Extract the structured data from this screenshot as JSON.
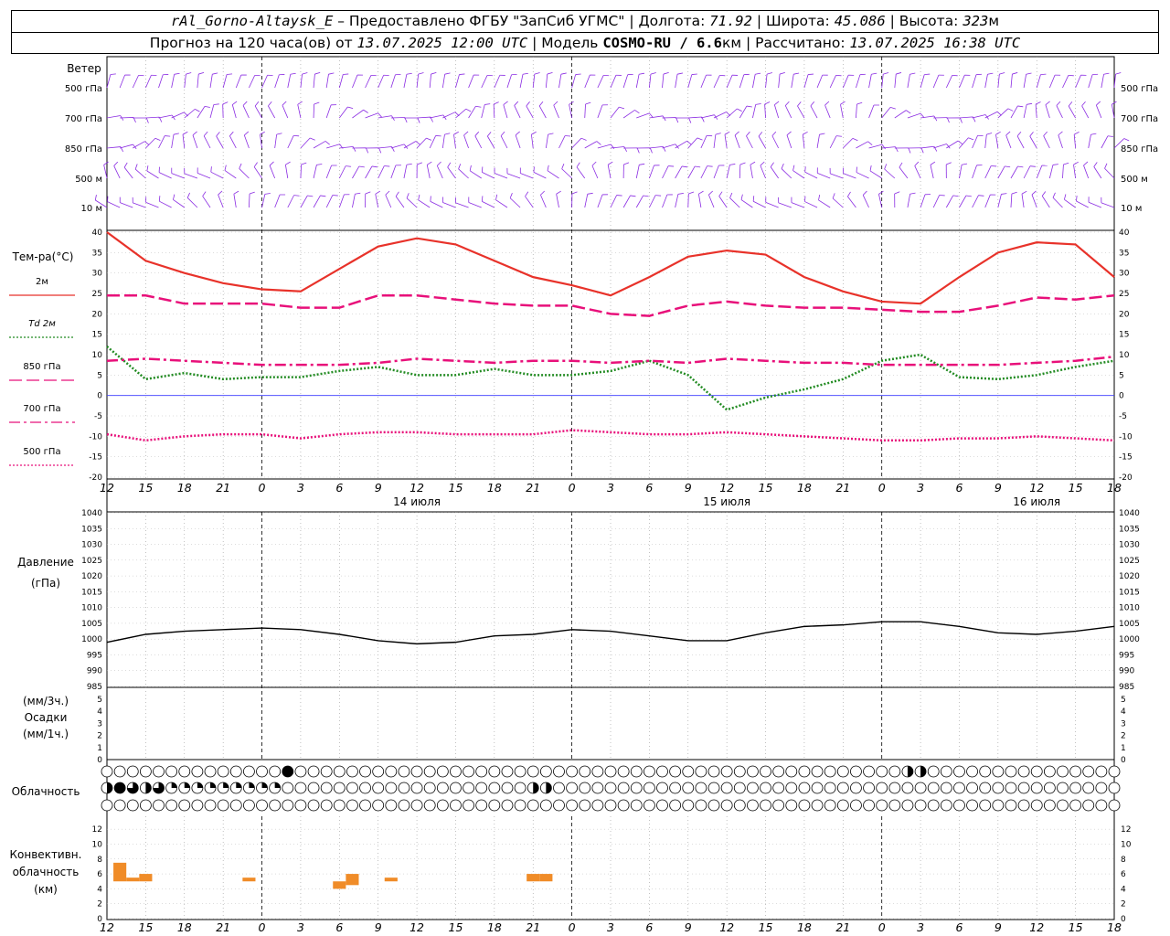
{
  "header": {
    "station": "rAl_Gorno-Altaysk_E",
    "dash": " – ",
    "provider_prefix": "Предоставлено ФГБУ \"ЗапСиб УГМС\" | Долгота: ",
    "lon": "71.92",
    "lat_label": " | Широта: ",
    "lat": "45.086",
    "alt_label": " | Высота: ",
    "alt": "323",
    "alt_unit": "м",
    "fc_label": "Прогноз на 120 часа(ов) от ",
    "fc_time": "13.07.2025 12:00 UTC",
    "model_label": " | Модель ",
    "model": "COSMO-RU / 6.6",
    "model_unit": "км",
    "calc_label": " | Рассчитано: ",
    "calc_time": "13.07.2025 16:38 UTC"
  },
  "wind_panel": {
    "title": "Ветер",
    "levels": [
      "500 гПа",
      "700 гПа",
      "850 гПа",
      "500 м",
      "10 м"
    ],
    "barb_color": "#8a2be2"
  },
  "temp_panel": {
    "title": "Тем-ра(°C)",
    "legend": [
      {
        "label": "2м",
        "color": "#e8322a",
        "style": "solid"
      },
      {
        "label": "Td 2м",
        "color": "#228b22",
        "style": "dotted"
      },
      {
        "label": "850 гПа",
        "color": "#e8107a",
        "style": "dashed"
      },
      {
        "label": "700 гПа",
        "color": "#e8107a",
        "style": "dashdot"
      },
      {
        "label": "500 гПа",
        "color": "#e8107a",
        "style": "dotted"
      }
    ],
    "yticks": [
      "40",
      "35",
      "30",
      "25",
      "20",
      "15",
      "10",
      "5",
      "0",
      "-5",
      "-10",
      "-15",
      "-20"
    ]
  },
  "xaxis": {
    "hour_labels": [
      "12",
      "15",
      "18",
      "21",
      "0",
      "3",
      "6",
      "9",
      "12",
      "15",
      "18",
      "21",
      "0",
      "3",
      "6",
      "9",
      "12",
      "15",
      "18",
      "21",
      "0",
      "3",
      "6",
      "9",
      "12",
      "15",
      "18"
    ],
    "days": [
      "14 июля",
      "15 июля",
      "16 июля"
    ]
  },
  "pressure_panel": {
    "title": "Давление",
    "unit": "(гПа)",
    "yticks": [
      "1040",
      "1035",
      "1030",
      "1025",
      "1020",
      "1015",
      "1010",
      "1005",
      "1000",
      "995",
      "990",
      "985"
    ]
  },
  "precip_panel": {
    "unit3": "(мм/3ч.)",
    "title": "Осадки",
    "unit1": "(мм/1ч.)",
    "yticks": [
      "5",
      "4",
      "3",
      "2",
      "1",
      "0"
    ]
  },
  "cloud_panel": {
    "title": "Облачность"
  },
  "conv_panel": {
    "title1": "Конвективн.",
    "title2": "облачность",
    "unit": "(км)",
    "yticks": [
      "12",
      "10",
      "8",
      "6",
      "4",
      "2",
      "0"
    ],
    "bar_color": "#f08c28"
  },
  "chart_data": [
    {
      "type": "line",
      "title": "Тем-ра(°C)",
      "x_hours": [
        0,
        3,
        6,
        9,
        12,
        15,
        18,
        21,
        24,
        27,
        30,
        33,
        36,
        39,
        42,
        45,
        48,
        51,
        54,
        57,
        60,
        63,
        66,
        69,
        72,
        75,
        78
      ],
      "ylim": [
        -20,
        40
      ],
      "series": [
        {
          "name": "2м",
          "values": [
            40,
            33,
            30,
            27.5,
            26,
            25.5,
            31,
            36.5,
            38.5,
            37,
            33,
            29,
            27,
            24.5,
            29,
            34,
            35.5,
            34.5,
            29,
            25.5,
            23,
            22.5,
            29,
            35,
            37.5,
            37,
            29
          ]
        },
        {
          "name": "Td 2м",
          "values": [
            12,
            4,
            5.5,
            4,
            4.5,
            4.5,
            6,
            7,
            5,
            5,
            6.5,
            5,
            5,
            6,
            8.5,
            5,
            -3.5,
            -0.5,
            1.5,
            4,
            8.5,
            10,
            4.5,
            4,
            5,
            7,
            8.5
          ]
        },
        {
          "name": "850 гПа",
          "values": [
            24.5,
            24.5,
            22.5,
            22.5,
            22.5,
            21.5,
            21.5,
            24.5,
            24.5,
            23.5,
            22.5,
            22,
            22,
            20,
            19.5,
            22,
            23,
            22,
            21.5,
            21.5,
            21,
            20.5,
            20.5,
            22,
            24,
            23.5,
            24.5
          ]
        },
        {
          "name": "700 гПа",
          "values": [
            8.5,
            9,
            8.5,
            8,
            7.5,
            7.5,
            7.5,
            8,
            9,
            8.5,
            8,
            8.5,
            8.5,
            8,
            8.5,
            8,
            9,
            8.5,
            8,
            8,
            7.5,
            7.5,
            7.5,
            7.5,
            8,
            8.5,
            9.5
          ]
        },
        {
          "name": "500 гПа",
          "values": [
            -9.5,
            -11,
            -10,
            -9.5,
            -9.5,
            -10.5,
            -9.5,
            -9,
            -9,
            -9.5,
            -9.5,
            -9.5,
            -8.5,
            -9,
            -9.5,
            -9.5,
            -9,
            -9.5,
            -10,
            -10.5,
            -11,
            -11,
            -10.5,
            -10.5,
            -10,
            -10.5,
            -11
          ]
        }
      ]
    },
    {
      "type": "line",
      "title": "Давление",
      "x_hours": [
        0,
        3,
        6,
        9,
        12,
        15,
        18,
        21,
        24,
        27,
        30,
        33,
        36,
        39,
        42,
        45,
        48,
        51,
        54,
        57,
        60,
        63,
        66,
        69,
        72,
        75,
        78
      ],
      "ylim": [
        985,
        1040
      ],
      "series": [
        {
          "name": "Давление",
          "values": [
            999,
            1001.5,
            1002.5,
            1003,
            1003.5,
            1003,
            1001.5,
            999.5,
            998.5,
            999,
            1001,
            1001.5,
            1003,
            1002.5,
            1001,
            999.5,
            999.5,
            1002,
            1004,
            1004.5,
            1005.5,
            1005.5,
            1004,
            1002,
            1001.5,
            1002.5,
            1004
          ]
        }
      ]
    },
    {
      "type": "bar",
      "title": "Конвективн. облачность",
      "ylim": [
        0,
        13
      ],
      "bars": [
        {
          "x_hours": 1,
          "base": 5,
          "top": 7.5
        },
        {
          "x_hours": 2,
          "base": 5,
          "top": 5.5
        },
        {
          "x_hours": 3,
          "base": 5,
          "top": 6
        },
        {
          "x_hours": 11,
          "base": 5,
          "top": 5.5
        },
        {
          "x_hours": 18,
          "base": 4,
          "top": 5
        },
        {
          "x_hours": 19,
          "base": 4.5,
          "top": 6
        },
        {
          "x_hours": 22,
          "base": 5,
          "top": 5.5
        },
        {
          "x_hours": 33,
          "base": 5,
          "top": 6
        },
        {
          "x_hours": 34,
          "base": 5,
          "top": 6
        }
      ]
    }
  ]
}
